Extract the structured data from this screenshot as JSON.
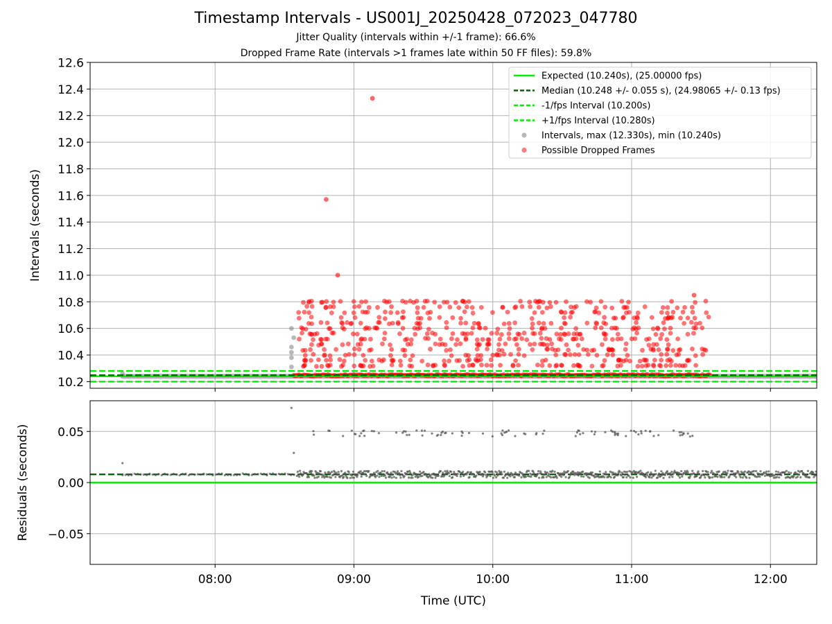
{
  "chart_data": [
    {
      "type": "scatter",
      "title": "Timestamp Intervals - US001J_20250428_072023_047780",
      "subtitle_1": "Jitter Quality (intervals within +/-1 frame): 66.6%",
      "subtitle_2": "Dropped Frame Rate (intervals >1 frames late within 50 FF files): 59.8%",
      "ylabel": "Intervals (seconds)",
      "xlim": [
        "07:06",
        "12:20"
      ],
      "ylim": [
        10.15,
        12.6
      ],
      "y_ticks": [
        "10.2",
        "10.4",
        "10.6",
        "10.8",
        "11.0",
        "11.2",
        "11.4",
        "11.6",
        "11.8",
        "12.0",
        "12.2",
        "12.4",
        "12.6"
      ],
      "grid": true,
      "legend_position": "top-right",
      "legend": [
        {
          "label": "Expected (10.240s), (25.00000 fps)",
          "style": "solid-line",
          "color": "#00ee00"
        },
        {
          "label": "Median (10.248 +/- 0.055 s), (24.98065 +/- 0.13 fps)",
          "style": "dashed-line",
          "color": "#006400"
        },
        {
          "label": "-1/fps Interval (10.200s)",
          "style": "dashed-line",
          "color": "#00ee00"
        },
        {
          "label": "+1/fps Interval (10.280s)",
          "style": "dashed-line",
          "color": "#00ee00"
        },
        {
          "label": "Intervals, max (12.330s), min (10.240s)",
          "style": "marker",
          "color": "#999999"
        },
        {
          "label": "Possible Dropped Frames",
          "style": "marker",
          "color": "#ff3333"
        }
      ],
      "reference_lines": {
        "expected": 10.24,
        "median": 10.248,
        "minus_one_frame": 10.2,
        "plus_one_frame": 10.28
      },
      "intervals_baseline": {
        "value": 10.24,
        "x_range": [
          "07:20",
          "12:20"
        ]
      },
      "dropped_frames_baseline": {
        "value": 10.248,
        "x_range": [
          "08:34",
          "11:34"
        ]
      },
      "dropped_frames_outliers": [
        {
          "x": "08:48",
          "y": 11.57
        },
        {
          "x": "08:53",
          "y": 11.0
        },
        {
          "x": "09:08",
          "y": 12.33
        }
      ],
      "dropped_frames_cluster": {
        "x_range": [
          "08:34",
          "11:34"
        ],
        "y_levels": [
          10.32,
          10.36,
          10.4,
          10.44,
          10.48,
          10.52,
          10.56,
          10.6,
          10.64,
          10.68,
          10.72,
          10.76,
          10.8
        ],
        "max": 10.85
      },
      "grey_points_near_start": [
        {
          "x": "08:33",
          "y": 10.31
        },
        {
          "x": "08:33",
          "y": 10.38
        },
        {
          "x": "08:33",
          "y": 10.42
        },
        {
          "x": "08:33",
          "y": 10.46
        },
        {
          "x": "08:34",
          "y": 10.53
        },
        {
          "x": "08:33",
          "y": 10.6
        },
        {
          "x": "07:20",
          "y": 10.26
        }
      ],
      "marker_colors": {
        "intervals": "#808080",
        "dropped": "#ff0000",
        "expected": "#00ee00",
        "median": "#006400"
      }
    },
    {
      "type": "scatter",
      "ylabel": "Residuals (seconds)",
      "xlabel": "Time (UTC)",
      "xlim": [
        "07:06",
        "12:20"
      ],
      "x_ticks": [
        "08:00",
        "09:00",
        "10:00",
        "11:00",
        "12:00"
      ],
      "ylim": [
        -0.08,
        0.08
      ],
      "y_ticks": [
        "−0.05",
        "0.00",
        "0.05"
      ],
      "grid": true,
      "reference_lines": {
        "expected": 0.0,
        "median": 0.008
      },
      "residual_points": [
        {
          "x": "07:20",
          "y": 0.019
        },
        {
          "x": "08:33",
          "y": 0.073
        },
        {
          "x": "08:34",
          "y": 0.029
        }
      ],
      "main_band": {
        "x_range": [
          "07:20",
          "12:20"
        ],
        "y_center": 0.008,
        "spread": 0.0035
      },
      "upper_band": {
        "x_range": [
          "08:42",
          "11:27"
        ],
        "y_center": 0.048,
        "spread": 0.003
      }
    }
  ]
}
